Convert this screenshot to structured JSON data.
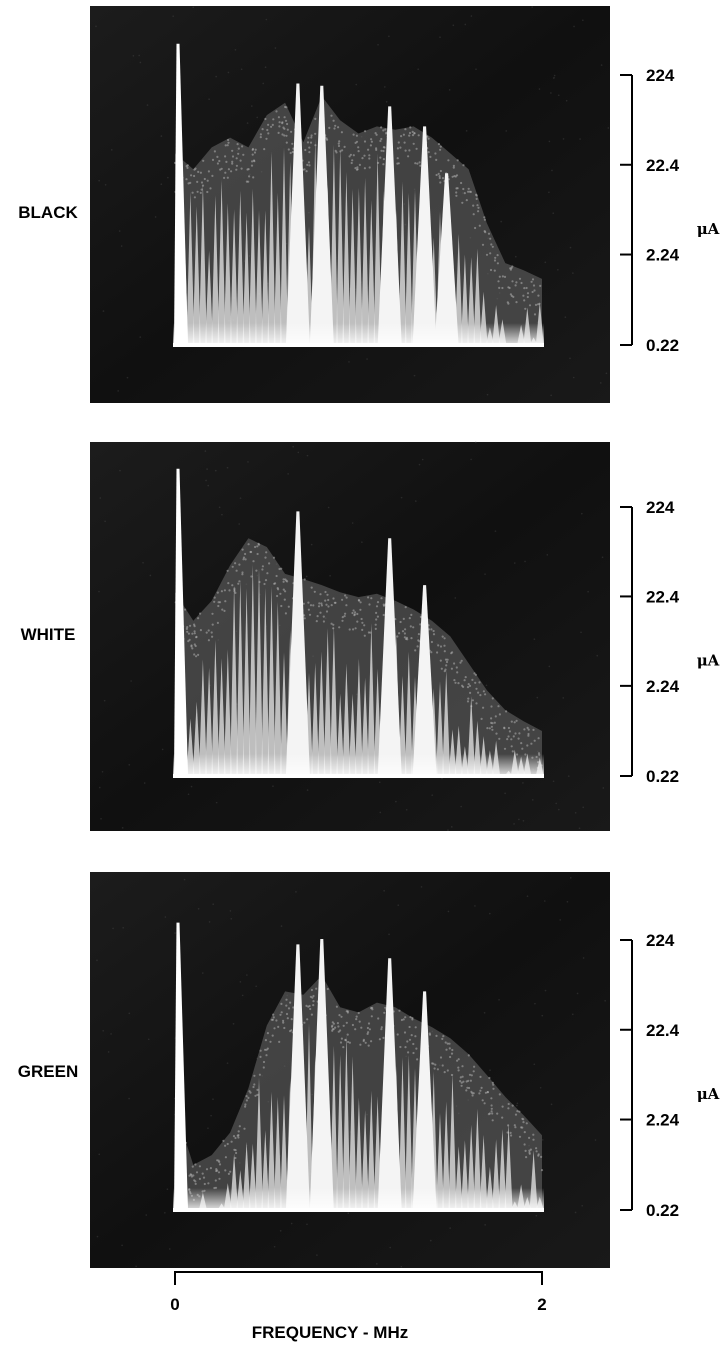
{
  "chart_data": {
    "type": "area",
    "xlabel": "FREQUENCY - MHz",
    "xlim": [
      0,
      2
    ],
    "x_ticks": [
      "0",
      "2"
    ],
    "y_scale": "log",
    "ylim": [
      0.22,
      224
    ],
    "y_ticks": [
      "224",
      "22.4",
      "2.24",
      "0.22"
    ],
    "y_unit": "μA",
    "x": [
      0,
      0.1,
      0.2,
      0.3,
      0.4,
      0.5,
      0.6,
      0.7,
      0.8,
      0.9,
      1.0,
      1.1,
      1.2,
      1.3,
      1.4,
      1.5,
      1.6,
      1.7,
      1.8,
      1.9,
      2.0
    ],
    "panels": [
      {
        "label": "BLACK",
        "carrier_peak_ua": 500,
        "envelope_ua": [
          30,
          20,
          35,
          45,
          35,
          80,
          110,
          40,
          130,
          70,
          50,
          60,
          55,
          60,
          45,
          30,
          20,
          5,
          1.8,
          1.5,
          1.2
        ],
        "peaks": [
          {
            "x": 0.67,
            "ua": 180
          },
          {
            "x": 0.8,
            "ua": 170
          },
          {
            "x": 1.17,
            "ua": 100
          },
          {
            "x": 1.36,
            "ua": 60
          },
          {
            "x": 1.48,
            "ua": 18
          }
        ]
      },
      {
        "label": "WHITE",
        "carrier_peak_ua": 600,
        "envelope_ua": [
          25,
          12,
          20,
          50,
          100,
          80,
          40,
          35,
          30,
          25,
          22,
          24,
          20,
          16,
          12,
          8,
          4,
          2,
          1.2,
          0.9,
          0.7
        ],
        "peaks": [
          {
            "x": 0.67,
            "ua": 200
          },
          {
            "x": 1.17,
            "ua": 100
          },
          {
            "x": 1.36,
            "ua": 30
          }
        ]
      },
      {
        "label": "GREEN",
        "carrier_peak_ua": 350,
        "envelope_ua": [
          3,
          0.7,
          0.9,
          1.6,
          5,
          25,
          60,
          55,
          90,
          40,
          35,
          45,
          40,
          30,
          24,
          18,
          12,
          7,
          4,
          2.5,
          1.5
        ],
        "peaks": [
          {
            "x": 0.67,
            "ua": 200
          },
          {
            "x": 0.8,
            "ua": 230
          },
          {
            "x": 1.17,
            "ua": 140
          },
          {
            "x": 1.36,
            "ua": 60
          }
        ]
      }
    ]
  }
}
